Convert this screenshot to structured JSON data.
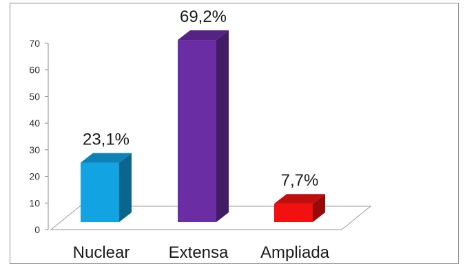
{
  "chart_data": {
    "type": "bar",
    "style": "3d",
    "categories": [
      "Nuclear",
      "Extensa",
      "Ampliada"
    ],
    "values": [
      23.1,
      69.2,
      7.7
    ],
    "data_labels": [
      "23,1%",
      "69,2%",
      "7,7%"
    ],
    "colors": [
      "#12a3e3",
      "#6a2da3",
      "#f21010"
    ],
    "ylim": [
      0,
      70
    ],
    "yticks": [
      "0",
      "10",
      "20",
      "30",
      "40",
      "50",
      "60",
      "70"
    ],
    "legend": "none",
    "grid": false
  }
}
